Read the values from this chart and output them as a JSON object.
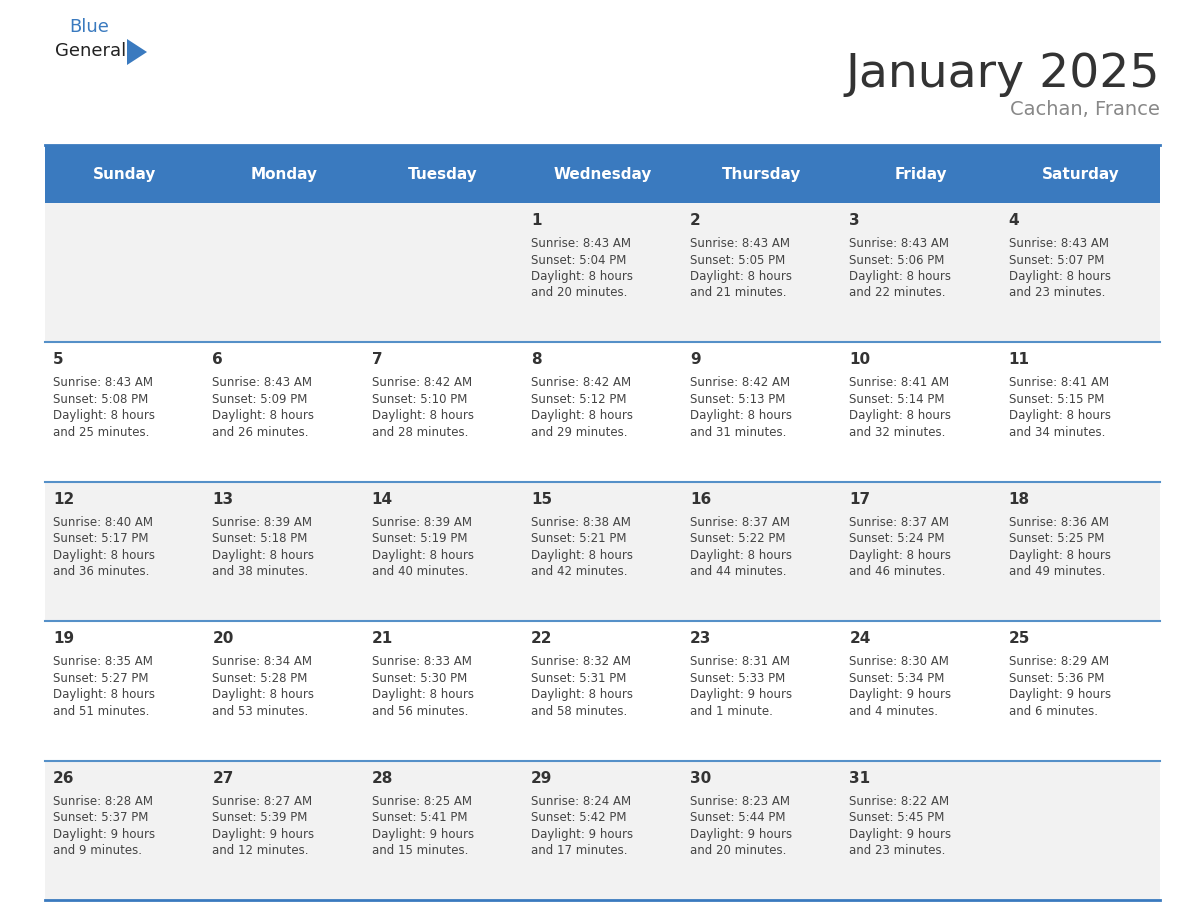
{
  "title": "January 2025",
  "subtitle": "Cachan, France",
  "header_color": "#3a7abf",
  "header_text_color": "#ffffff",
  "cell_bg_even": "#f2f2f2",
  "cell_bg_odd": "#ffffff",
  "border_color": "#3a7abf",
  "row_border_color": "#5590c8",
  "title_color": "#333333",
  "subtitle_color": "#888888",
  "day_number_color": "#333333",
  "cell_text_color": "#444444",
  "weekdays": [
    "Sunday",
    "Monday",
    "Tuesday",
    "Wednesday",
    "Thursday",
    "Friday",
    "Saturday"
  ],
  "weeks": [
    [
      {
        "day": null,
        "sunrise": null,
        "sunset": null,
        "daylight": null
      },
      {
        "day": null,
        "sunrise": null,
        "sunset": null,
        "daylight": null
      },
      {
        "day": null,
        "sunrise": null,
        "sunset": null,
        "daylight": null
      },
      {
        "day": 1,
        "sunrise": "8:43 AM",
        "sunset": "5:04 PM",
        "daylight": "8 hours\nand 20 minutes."
      },
      {
        "day": 2,
        "sunrise": "8:43 AM",
        "sunset": "5:05 PM",
        "daylight": "8 hours\nand 21 minutes."
      },
      {
        "day": 3,
        "sunrise": "8:43 AM",
        "sunset": "5:06 PM",
        "daylight": "8 hours\nand 22 minutes."
      },
      {
        "day": 4,
        "sunrise": "8:43 AM",
        "sunset": "5:07 PM",
        "daylight": "8 hours\nand 23 minutes."
      }
    ],
    [
      {
        "day": 5,
        "sunrise": "8:43 AM",
        "sunset": "5:08 PM",
        "daylight": "8 hours\nand 25 minutes."
      },
      {
        "day": 6,
        "sunrise": "8:43 AM",
        "sunset": "5:09 PM",
        "daylight": "8 hours\nand 26 minutes."
      },
      {
        "day": 7,
        "sunrise": "8:42 AM",
        "sunset": "5:10 PM",
        "daylight": "8 hours\nand 28 minutes."
      },
      {
        "day": 8,
        "sunrise": "8:42 AM",
        "sunset": "5:12 PM",
        "daylight": "8 hours\nand 29 minutes."
      },
      {
        "day": 9,
        "sunrise": "8:42 AM",
        "sunset": "5:13 PM",
        "daylight": "8 hours\nand 31 minutes."
      },
      {
        "day": 10,
        "sunrise": "8:41 AM",
        "sunset": "5:14 PM",
        "daylight": "8 hours\nand 32 minutes."
      },
      {
        "day": 11,
        "sunrise": "8:41 AM",
        "sunset": "5:15 PM",
        "daylight": "8 hours\nand 34 minutes."
      }
    ],
    [
      {
        "day": 12,
        "sunrise": "8:40 AM",
        "sunset": "5:17 PM",
        "daylight": "8 hours\nand 36 minutes."
      },
      {
        "day": 13,
        "sunrise": "8:39 AM",
        "sunset": "5:18 PM",
        "daylight": "8 hours\nand 38 minutes."
      },
      {
        "day": 14,
        "sunrise": "8:39 AM",
        "sunset": "5:19 PM",
        "daylight": "8 hours\nand 40 minutes."
      },
      {
        "day": 15,
        "sunrise": "8:38 AM",
        "sunset": "5:21 PM",
        "daylight": "8 hours\nand 42 minutes."
      },
      {
        "day": 16,
        "sunrise": "8:37 AM",
        "sunset": "5:22 PM",
        "daylight": "8 hours\nand 44 minutes."
      },
      {
        "day": 17,
        "sunrise": "8:37 AM",
        "sunset": "5:24 PM",
        "daylight": "8 hours\nand 46 minutes."
      },
      {
        "day": 18,
        "sunrise": "8:36 AM",
        "sunset": "5:25 PM",
        "daylight": "8 hours\nand 49 minutes."
      }
    ],
    [
      {
        "day": 19,
        "sunrise": "8:35 AM",
        "sunset": "5:27 PM",
        "daylight": "8 hours\nand 51 minutes."
      },
      {
        "day": 20,
        "sunrise": "8:34 AM",
        "sunset": "5:28 PM",
        "daylight": "8 hours\nand 53 minutes."
      },
      {
        "day": 21,
        "sunrise": "8:33 AM",
        "sunset": "5:30 PM",
        "daylight": "8 hours\nand 56 minutes."
      },
      {
        "day": 22,
        "sunrise": "8:32 AM",
        "sunset": "5:31 PM",
        "daylight": "8 hours\nand 58 minutes."
      },
      {
        "day": 23,
        "sunrise": "8:31 AM",
        "sunset": "5:33 PM",
        "daylight": "9 hours\nand 1 minute."
      },
      {
        "day": 24,
        "sunrise": "8:30 AM",
        "sunset": "5:34 PM",
        "daylight": "9 hours\nand 4 minutes."
      },
      {
        "day": 25,
        "sunrise": "8:29 AM",
        "sunset": "5:36 PM",
        "daylight": "9 hours\nand 6 minutes."
      }
    ],
    [
      {
        "day": 26,
        "sunrise": "8:28 AM",
        "sunset": "5:37 PM",
        "daylight": "9 hours\nand 9 minutes."
      },
      {
        "day": 27,
        "sunrise": "8:27 AM",
        "sunset": "5:39 PM",
        "daylight": "9 hours\nand 12 minutes."
      },
      {
        "day": 28,
        "sunrise": "8:25 AM",
        "sunset": "5:41 PM",
        "daylight": "9 hours\nand 15 minutes."
      },
      {
        "day": 29,
        "sunrise": "8:24 AM",
        "sunset": "5:42 PM",
        "daylight": "9 hours\nand 17 minutes."
      },
      {
        "day": 30,
        "sunrise": "8:23 AM",
        "sunset": "5:44 PM",
        "daylight": "9 hours\nand 20 minutes."
      },
      {
        "day": 31,
        "sunrise": "8:22 AM",
        "sunset": "5:45 PM",
        "daylight": "9 hours\nand 23 minutes."
      },
      {
        "day": null,
        "sunrise": null,
        "sunset": null,
        "daylight": null
      }
    ]
  ],
  "logo_general_color": "#222222",
  "logo_blue_color": "#3a7abf",
  "logo_triangle_color": "#3a7abf",
  "header_fontsize": 11,
  "day_fontsize": 11,
  "cell_fontsize": 8.5,
  "title_fontsize": 34,
  "subtitle_fontsize": 14
}
